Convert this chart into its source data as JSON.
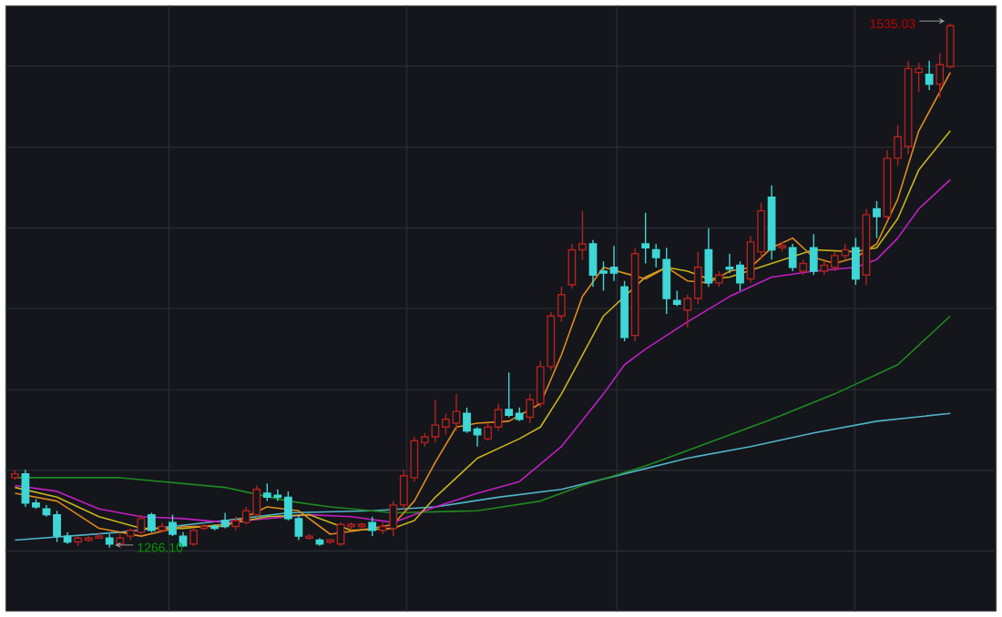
{
  "chart_data": {
    "type": "candlestick",
    "grid": true,
    "categories": [
      null,
      null,
      null,
      null,
      null,
      null,
      null,
      null,
      null,
      null,
      null,
      null,
      null,
      null,
      null,
      null,
      null,
      null,
      null,
      null,
      null,
      null,
      null,
      null,
      null,
      null,
      null,
      null,
      null,
      null,
      null,
      null,
      null,
      null,
      null,
      null,
      null,
      null,
      null,
      null,
      null,
      null,
      null,
      null,
      null,
      null,
      null,
      null,
      null,
      null,
      null,
      null,
      null,
      null,
      null,
      null,
      null,
      null,
      null,
      null,
      null,
      null,
      null,
      null,
      null,
      null,
      null,
      null,
      null,
      null,
      null,
      null,
      null,
      null,
      null,
      null,
      null,
      null,
      null,
      null,
      null,
      null,
      null,
      null,
      null,
      null,
      null,
      null,
      null,
      null
    ],
    "ohlc": [
      [
        1302,
        1306,
        1301,
        1304
      ],
      [
        1304,
        1306,
        1287,
        1289
      ],
      [
        1289,
        1291,
        1286,
        1287
      ],
      [
        1286,
        1288,
        1282,
        1283
      ],
      [
        1283,
        1285,
        1269,
        1272
      ],
      [
        1272,
        1274,
        1268,
        1269
      ],
      [
        1269,
        1272,
        1267,
        1271
      ],
      [
        1270,
        1272,
        1269,
        1271
      ],
      [
        1271,
        1274,
        1271,
        1272
      ],
      [
        1271,
        1273,
        1266.1,
        1268
      ],
      [
        1268,
        1273,
        1267,
        1271
      ],
      [
        1272,
        1276,
        1270,
        1275
      ],
      [
        1274,
        1283,
        1273,
        1281
      ],
      [
        1283,
        1284,
        1274,
        1275
      ],
      [
        1275,
        1279,
        1274,
        1277
      ],
      [
        1279,
        1283,
        1272,
        1273
      ],
      [
        1272,
        1274,
        1266.5,
        1267
      ],
      [
        1268,
        1276,
        1267,
        1275
      ],
      [
        1276,
        1279,
        1275,
        1277
      ],
      [
        1277,
        1278,
        1275,
        1276
      ],
      [
        1280,
        1284,
        1276,
        1277
      ],
      [
        1277,
        1282,
        1275,
        1280
      ],
      [
        1279,
        1287,
        1278,
        1285
      ],
      [
        1283,
        1298,
        1282,
        1296
      ],
      [
        1294,
        1299,
        1290,
        1292
      ],
      [
        1293,
        1296,
        1290,
        1292
      ],
      [
        1292,
        1295,
        1280,
        1281
      ],
      [
        1281,
        1283,
        1270,
        1272
      ],
      [
        1271,
        1273,
        1270,
        1272
      ],
      [
        1270,
        1271,
        1267,
        1268
      ],
      [
        1269,
        1270,
        1268,
        1269
      ],
      [
        1268,
        1279,
        1267,
        1278
      ],
      [
        1277,
        1279,
        1275,
        1278
      ],
      [
        1277,
        1279,
        1276,
        1278
      ],
      [
        1279,
        1282,
        1272,
        1275
      ],
      [
        1275,
        1279,
        1273,
        1277
      ],
      [
        1276,
        1290,
        1272,
        1288
      ],
      [
        1288,
        1306,
        1286,
        1303
      ],
      [
        1302,
        1323,
        1300,
        1321
      ],
      [
        1320,
        1325,
        1318,
        1323
      ],
      [
        1323,
        1342,
        1320,
        1329
      ],
      [
        1328,
        1335,
        1324,
        1332
      ],
      [
        1330,
        1345,
        1326,
        1336
      ],
      [
        1335,
        1338,
        1325,
        1326
      ],
      [
        1327,
        1328,
        1318,
        1324
      ],
      [
        1322,
        1330,
        1321,
        1328
      ],
      [
        1328,
        1340,
        1326,
        1337
      ],
      [
        1337,
        1356,
        1333,
        1334
      ],
      [
        1335,
        1338,
        1331,
        1332
      ],
      [
        1333,
        1345,
        1330,
        1342
      ],
      [
        1340,
        1362,
        1338,
        1359
      ],
      [
        1359,
        1387,
        1357,
        1385
      ],
      [
        1385,
        1400,
        1382,
        1396
      ],
      [
        1401,
        1422,
        1399,
        1419
      ],
      [
        1419,
        1439,
        1414,
        1422
      ],
      [
        1422,
        1424,
        1400,
        1406
      ],
      [
        1408,
        1413,
        1398,
        1407
      ],
      [
        1410,
        1421,
        1403,
        1407
      ],
      [
        1400,
        1403,
        1372,
        1374
      ],
      [
        1375,
        1420,
        1372,
        1417
      ],
      [
        1422,
        1438,
        1412,
        1420
      ],
      [
        1419,
        1422,
        1410,
        1415
      ],
      [
        1414,
        1420,
        1386,
        1394
      ],
      [
        1393,
        1398,
        1390,
        1391
      ],
      [
        1388,
        1396,
        1379,
        1394
      ],
      [
        1394,
        1418,
        1391,
        1410
      ],
      [
        1419,
        1430,
        1400,
        1402
      ],
      [
        1402,
        1408,
        1400,
        1406
      ],
      [
        1410,
        1417,
        1407,
        1409
      ],
      [
        1411,
        1413,
        1398,
        1402
      ],
      [
        1404,
        1426,
        1402,
        1423
      ],
      [
        1418,
        1443,
        1414,
        1439
      ],
      [
        1446,
        1452,
        1414,
        1419
      ],
      [
        1420,
        1423,
        1418,
        1420
      ],
      [
        1420,
        1422,
        1408,
        1410
      ],
      [
        1408,
        1414,
        1406,
        1412
      ],
      [
        1420,
        1427,
        1406,
        1408
      ],
      [
        1408,
        1413,
        1406,
        1411
      ],
      [
        1410,
        1418,
        1408,
        1416
      ],
      [
        1416,
        1422,
        1414,
        1419
      ],
      [
        1420,
        1425,
        1401,
        1404
      ],
      [
        1406,
        1440,
        1401,
        1437
      ],
      [
        1440,
        1444,
        1425,
        1436
      ],
      [
        1436,
        1470,
        1434,
        1466
      ],
      [
        1466,
        1483,
        1462,
        1477
      ],
      [
        1472,
        1516,
        1468,
        1512
      ],
      [
        1510,
        1515,
        1500,
        1512
      ],
      [
        1509,
        1516,
        1501,
        1504
      ],
      [
        1504,
        1520,
        1497,
        1514
      ],
      [
        1513,
        1535.03,
        1512,
        1534
      ]
    ],
    "colors": [
      "#b3221f",
      "#3fd6d6",
      "#3fd6d6",
      "#3fd6d6",
      "#3fd6d6",
      "#3fd6d6",
      "#b3221f",
      "#b3221f",
      "#b3221f",
      "#3fd6d6",
      "#b3221f",
      "#b3221f",
      "#b3221f",
      "#3fd6d6",
      "#b3221f",
      "#3fd6d6",
      "#3fd6d6",
      "#b3221f",
      "#b3221f",
      "#3fd6d6",
      "#3fd6d6",
      "#b3221f",
      "#b3221f",
      "#b3221f",
      "#3fd6d6",
      "#3fd6d6",
      "#3fd6d6",
      "#3fd6d6",
      "#b3221f",
      "#3fd6d6",
      "#b3221f",
      "#b3221f",
      "#b3221f",
      "#b3221f",
      "#3fd6d6",
      "#b3221f",
      "#b3221f",
      "#b3221f",
      "#b3221f",
      "#b3221f",
      "#b3221f",
      "#b3221f",
      "#b3221f",
      "#3fd6d6",
      "#3fd6d6",
      "#b3221f",
      "#b3221f",
      "#3fd6d6",
      "#3fd6d6",
      "#b3221f",
      "#b3221f",
      "#b3221f",
      "#b3221f",
      "#b3221f",
      "#b3221f",
      "#3fd6d6",
      "#3fd6d6",
      "#3fd6d6",
      "#3fd6d6",
      "#b3221f",
      "#3fd6d6",
      "#3fd6d6",
      "#3fd6d6",
      "#3fd6d6",
      "#b3221f",
      "#b3221f",
      "#3fd6d6",
      "#b3221f",
      "#3fd6d6",
      "#3fd6d6",
      "#b3221f",
      "#b3221f",
      "#3fd6d6",
      "#b3221f",
      "#3fd6d6",
      "#b3221f",
      "#3fd6d6",
      "#b3221f",
      "#b3221f",
      "#b3221f",
      "#3fd6d6",
      "#b3221f",
      "#3fd6d6",
      "#b3221f",
      "#b3221f",
      "#b3221f",
      "#b3221f",
      "#3fd6d6",
      "#b3221f",
      "#b3221f"
    ],
    "series": [
      {
        "type": "line",
        "color": "#50b4c8",
        "values": [
          1270,
          null,
          null,
          null,
          null,
          null,
          null,
          null,
          null,
          null,
          1274,
          null,
          null,
          null,
          null,
          null,
          null,
          null,
          null,
          null,
          1280,
          null,
          null,
          null,
          null,
          null,
          1284,
          null,
          null,
          null,
          null,
          null,
          null,
          null,
          1285,
          null,
          null,
          null,
          null,
          null,
          1287,
          null,
          null,
          null,
          null,
          null,
          1292,
          null,
          null,
          null,
          null,
          null,
          1296,
          null,
          null,
          null,
          null,
          null,
          1304,
          null,
          null,
          null,
          null,
          null,
          1312,
          null,
          null,
          null,
          null,
          null,
          1318,
          null,
          null,
          null,
          null,
          null,
          1325,
          null,
          null,
          null,
          null,
          null,
          1331,
          null,
          null,
          null,
          null,
          null,
          null,
          1335
        ]
      },
      {
        "type": "line",
        "color": "#1f8a1f",
        "values": [
          1302,
          null,
          null,
          null,
          null,
          null,
          null,
          null,
          null,
          null,
          1302,
          null,
          null,
          null,
          null,
          null,
          null,
          null,
          null,
          null,
          1297,
          null,
          null,
          null,
          null,
          null,
          1290,
          null,
          null,
          null,
          1287,
          null,
          null,
          null,
          null,
          null,
          1284,
          null,
          null,
          null,
          null,
          null,
          null,
          null,
          1285,
          null,
          null,
          null,
          null,
          null,
          1290,
          null,
          null,
          null,
          1298,
          null,
          null,
          null,
          null,
          null,
          1308,
          null,
          null,
          null,
          null,
          null,
          1320,
          null,
          null,
          null,
          null,
          null,
          1332,
          null,
          null,
          null,
          null,
          null,
          1345,
          null,
          null,
          null,
          null,
          null,
          1360,
          null,
          null,
          null,
          null,
          1385
        ]
      },
      {
        "type": "line",
        "color": "#c21fc2",
        "values": [
          1298,
          null,
          null,
          null,
          1295,
          null,
          null,
          null,
          1286,
          null,
          null,
          null,
          1282,
          null,
          null,
          null,
          1281,
          null,
          null,
          null,
          1279,
          null,
          null,
          null,
          1281,
          null,
          null,
          null,
          1283,
          null,
          null,
          null,
          1282,
          null,
          null,
          null,
          1279,
          null,
          null,
          null,
          1287,
          null,
          null,
          null,
          1294,
          null,
          null,
          null,
          1300,
          null,
          null,
          null,
          1318,
          null,
          null,
          null,
          1345,
          null,
          1360,
          null,
          1368,
          null,
          null,
          null,
          1382,
          null,
          null,
          null,
          1395,
          null,
          null,
          null,
          1405,
          null,
          null,
          null,
          1408,
          null,
          null,
          null,
          1410,
          null,
          1414,
          null,
          1425,
          null,
          1440,
          null,
          null,
          1455
        ]
      },
      {
        "type": "line",
        "color": "#c8b41e",
        "values": [
          1297,
          null,
          null,
          null,
          1292,
          null,
          null,
          null,
          1282,
          null,
          null,
          null,
          1276,
          null,
          null,
          null,
          1276,
          null,
          null,
          null,
          1278,
          null,
          null,
          null,
          1282,
          null,
          null,
          null,
          1283,
          null,
          null,
          null,
          1275,
          null,
          null,
          null,
          1276,
          null,
          1280,
          null,
          1292,
          null,
          null,
          null,
          1312,
          null,
          null,
          null,
          1322,
          null,
          1328,
          null,
          1345,
          null,
          1365,
          null,
          1385,
          null,
          1395,
          null,
          1405,
          null,
          1410,
          null,
          1408,
          null,
          1404,
          null,
          1405,
          null,
          null,
          null,
          1412,
          null,
          null,
          null,
          1419,
          null,
          null,
          null,
          1418,
          null,
          1420,
          null,
          1435,
          null,
          1460,
          null,
          null,
          1480
        ]
      },
      {
        "type": "line",
        "color": "#e08a1e",
        "values": [
          1294,
          null,
          null,
          null,
          1290,
          null,
          null,
          null,
          1276,
          null,
          null,
          null,
          1272,
          null,
          null,
          null,
          1277,
          null,
          null,
          null,
          1277,
          null,
          null,
          null,
          1287,
          null,
          null,
          1285,
          null,
          null,
          1273,
          null,
          null,
          null,
          1276,
          null,
          1278,
          null,
          1290,
          null,
          1310,
          null,
          1328,
          null,
          1330,
          null,
          null,
          1331,
          null,
          null,
          1340,
          null,
          1365,
          null,
          1395,
          null,
          1410,
          null,
          1407,
          null,
          1404,
          null,
          1410,
          null,
          1403,
          null,
          1402,
          null,
          1408,
          null,
          1410,
          null,
          1420,
          null,
          1425,
          null,
          1415,
          null,
          1412,
          null,
          1415,
          null,
          1422,
          null,
          1445,
          null,
          1480,
          null,
          null,
          1510
        ]
      }
    ],
    "annotations": [
      "1535.03",
      "1266.10"
    ]
  }
}
